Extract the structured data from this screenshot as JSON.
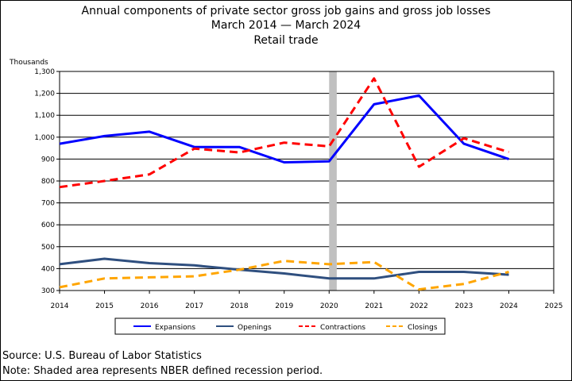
{
  "chart_data": {
    "type": "line",
    "title": "Annual components of private sector gross job gains and gross job losses",
    "subtitle_line1": "March 2014 — March 2024",
    "subtitle_line2": "Retail trade",
    "ylabel": "Thousands",
    "ylim": [
      300,
      1300
    ],
    "yticks": [
      300,
      400,
      500,
      600,
      700,
      800,
      900,
      1000,
      1100,
      1200,
      1300
    ],
    "ytick_labels": [
      "300",
      "400",
      "500",
      "600",
      "700",
      "800",
      "900",
      "1,000",
      "1,100",
      "1,200",
      "1,300"
    ],
    "xlim": [
      2014,
      2025
    ],
    "x_ticks": [
      2014,
      2015,
      2016,
      2017,
      2018,
      2019,
      2020,
      2021,
      2022,
      2023,
      2024,
      2025
    ],
    "x_tick_labels": [
      "2014",
      "2015",
      "2016",
      "2017",
      "2018",
      "2019",
      "2020",
      "2021",
      "2022",
      "2023",
      "2024",
      "2025"
    ],
    "grid": true,
    "legend_position": "bottom",
    "recession_band": [
      2020.0,
      2020.17
    ],
    "series": [
      {
        "name": "Expansions",
        "color": "#0000ff",
        "style": "solid",
        "x": [
          2014,
          2015,
          2016,
          2017,
          2018,
          2019,
          2020,
          2021,
          2022,
          2023,
          2024
        ],
        "values": [
          970,
          1005,
          1025,
          955,
          955,
          885,
          890,
          1150,
          1190,
          970,
          900
        ]
      },
      {
        "name": "Openings",
        "color": "#2f4f7f",
        "style": "solid",
        "x": [
          2014,
          2015,
          2016,
          2017,
          2018,
          2019,
          2020,
          2021,
          2022,
          2023,
          2024
        ],
        "values": [
          420,
          445,
          425,
          415,
          395,
          378,
          355,
          355,
          385,
          385,
          372
        ]
      },
      {
        "name": "Contractions",
        "color": "#ff0000",
        "style": "dashed",
        "x": [
          2014,
          2015,
          2016,
          2017,
          2018,
          2019,
          2020,
          2021,
          2022,
          2023,
          2024
        ],
        "values": [
          772,
          800,
          830,
          948,
          930,
          975,
          958,
          1268,
          865,
          995,
          932
        ]
      },
      {
        "name": "Closings",
        "color": "#ffa500",
        "style": "dashed",
        "x": [
          2014,
          2015,
          2016,
          2017,
          2018,
          2019,
          2020,
          2021,
          2022,
          2023,
          2024
        ],
        "values": [
          315,
          355,
          360,
          365,
          395,
          435,
          420,
          430,
          305,
          330,
          385
        ]
      }
    ]
  },
  "footer": {
    "source": "Source: U.S. Bureau of Labor Statistics",
    "note": "Note: Shaded area represents NBER defined recession period."
  }
}
